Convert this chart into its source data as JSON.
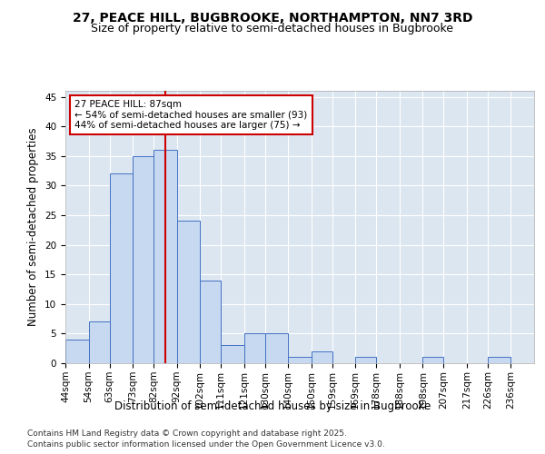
{
  "title_line1": "27, PEACE HILL, BUGBROOKE, NORTHAMPTON, NN7 3RD",
  "title_line2": "Size of property relative to semi-detached houses in Bugbrooke",
  "xlabel": "Distribution of semi-detached houses by size in Bugbrooke",
  "ylabel": "Number of semi-detached properties",
  "footnote1": "Contains HM Land Registry data © Crown copyright and database right 2025.",
  "footnote2": "Contains public sector information licensed under the Open Government Licence v3.0.",
  "annotation_line1": "27 PEACE HILL: 87sqm",
  "annotation_line2": "← 54% of semi-detached houses are smaller (93)",
  "annotation_line3": "44% of semi-detached houses are larger (75) →",
  "property_size": 87,
  "bar_color": "#c6d9f0",
  "bar_edge_color": "#4472c4",
  "vline_color": "#cc0000",
  "annotation_box_edgecolor": "#cc0000",
  "background_color": "#dce6f1",
  "bin_labels": [
    "44sqm",
    "54sqm",
    "63sqm",
    "73sqm",
    "82sqm",
    "92sqm",
    "102sqm",
    "111sqm",
    "121sqm",
    "130sqm",
    "140sqm",
    "150sqm",
    "159sqm",
    "169sqm",
    "178sqm",
    "188sqm",
    "198sqm",
    "207sqm",
    "217sqm",
    "226sqm",
    "236sqm"
  ],
  "bin_edges": [
    44,
    54,
    63,
    73,
    82,
    92,
    102,
    111,
    121,
    130,
    140,
    150,
    159,
    169,
    178,
    188,
    198,
    207,
    217,
    226,
    236,
    246
  ],
  "counts": [
    4,
    7,
    32,
    35,
    36,
    24,
    14,
    3,
    5,
    5,
    1,
    2,
    0,
    1,
    0,
    0,
    1,
    0,
    0,
    1,
    0
  ],
  "ylim": [
    0,
    46
  ],
  "yticks": [
    0,
    5,
    10,
    15,
    20,
    25,
    30,
    35,
    40,
    45
  ],
  "grid_color": "#ffffff",
  "title_fontsize": 10,
  "subtitle_fontsize": 9,
  "axis_label_fontsize": 8.5,
  "tick_fontsize": 7.5,
  "annotation_fontsize": 7.5,
  "footnote_fontsize": 6.5
}
